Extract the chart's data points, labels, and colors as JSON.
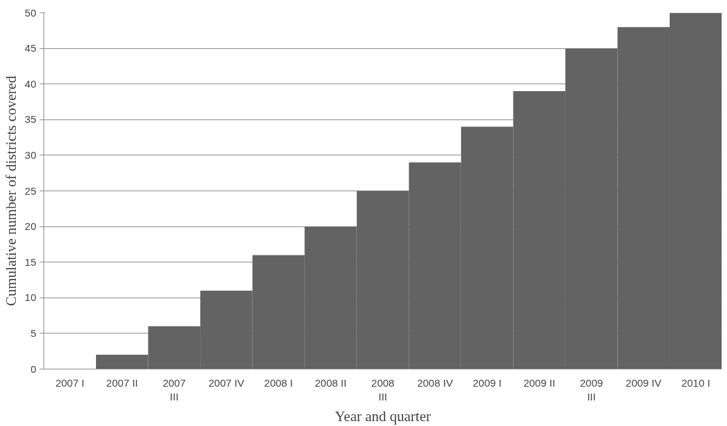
{
  "chart_data": {
    "type": "bar",
    "xlabel": "Year and quarter",
    "ylabel": "Cumulative number of districts covered",
    "categories": [
      "2007 I",
      "2007 II",
      "2007 III",
      "2007 IV",
      "2008 I",
      "2008 II",
      "2008 III",
      "2008 IV",
      "2009 I",
      "2009 II",
      "2009 III",
      "2009 IV",
      "2010 I"
    ],
    "values": [
      0,
      2,
      6,
      11,
      16,
      20,
      25,
      29,
      34,
      39,
      45,
      48,
      50
    ],
    "color": "#636363",
    "ylim": [
      0,
      50
    ],
    "yticks": [
      0,
      5,
      10,
      15,
      20,
      25,
      30,
      35,
      40,
      45,
      50
    ],
    "grid": "y"
  }
}
